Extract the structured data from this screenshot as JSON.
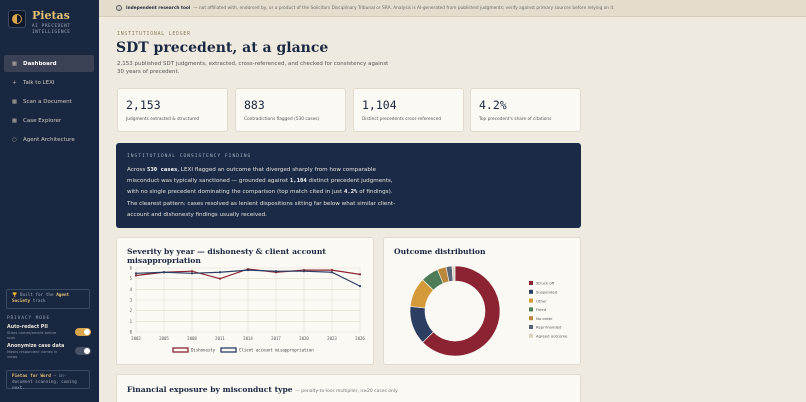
{
  "brand": {
    "name": "Pietas",
    "subtitle": "AI PRECEDENT INTELLIGENCE"
  },
  "nav": [
    {
      "label": "Dashboard",
      "icon": "grid-icon",
      "active": true
    },
    {
      "label": "Talk to LEXI",
      "icon": "plus-icon",
      "active": false
    },
    {
      "label": "Scan a Document",
      "icon": "grid-icon",
      "active": false
    },
    {
      "label": "Case Explorer",
      "icon": "grid-icon",
      "active": false
    },
    {
      "label": "Agent Architecture",
      "icon": "circle-icon",
      "active": false
    }
  ],
  "agent_box": {
    "prefix": "Built for the",
    "highlight": "Agent Society",
    "suffix": "track"
  },
  "privacy": {
    "title": "PRIVACY MODE",
    "auto_redact_label": "Auto-redact PII",
    "auto_redact_sub": "Strips names/emails before scan",
    "auto_redact_on": true,
    "anonymize_label": "Anonymize case data",
    "anonymize_sub": "Masks respondent names in views",
    "anonymize_on": false
  },
  "word_box": {
    "highlight": "Pietas for Word",
    "text": "— in-document scanning, coming next."
  },
  "banner": {
    "bold": "Independent research tool",
    "text": "— not affiliated with, endorsed by, or a product of the Solicitors Disciplinary Tribunal or SRA. Analysis is AI-generated from published judgments; verify against primary sources before relying on it."
  },
  "header": {
    "kicker": "INSTITUTIONAL LEDGER",
    "title": "SDT precedent, at a glance",
    "subtitle": "2,153 published SDT judgments, extracted, cross-referenced, and checked for consistency against 30 years of precedent."
  },
  "stats": [
    {
      "value": "2,153",
      "label": "Judgments extracted & structured"
    },
    {
      "value": "883",
      "label": "Contradictions flagged (530 cases)"
    },
    {
      "value": "1,104",
      "label": "Distinct precedents cross-referenced"
    },
    {
      "value": "4.2%",
      "label": "Top precedent's share of citations"
    }
  ],
  "finding": {
    "title": "INSTITUTIONAL CONSISTENCY FINDING",
    "t1": "Across ",
    "n1": "530 cases",
    "t2": ", LEXI flagged an outcome that diverged sharply from how comparable misconduct was typically sanctioned — grounded against ",
    "n2": "1,104",
    "t3": " distinct precedent judgments, with no single precedent dominating the comparison (top match cited in just ",
    "n3": "4.2%",
    "t4": " of findings). The clearest pattern: cases resolved as lenient dispositions sitting far below what similar client-account and dishonesty findings usually received."
  },
  "severity_card": {
    "title": "Severity by year — dishonesty & client account misappropriation"
  },
  "outcome_card": {
    "title": "Outcome distribution"
  },
  "exposure_card": {
    "title": "Financial exposure by misconduct type",
    "subtitle": "— penalty-to-loss multiplier, n≥20 cases only"
  },
  "chart_data": [
    {
      "type": "line",
      "title": "Severity by year — dishonesty & client account misappropriation",
      "x": [
        "2002",
        "2005",
        "2008",
        "2011",
        "2014",
        "2017",
        "2020",
        "2023",
        "2026"
      ],
      "ylim": [
        0,
        6
      ],
      "yticks": [
        0,
        1,
        2,
        3,
        4,
        5,
        6
      ],
      "series": [
        {
          "name": "Dishonesty",
          "color": "#8b2332",
          "values": [
            5.3,
            5.6,
            5.7,
            5.0,
            5.9,
            5.6,
            5.8,
            5.8,
            5.4
          ]
        },
        {
          "name": "Client account misappropriation",
          "color": "#2d3e63",
          "values": [
            5.5,
            5.6,
            5.5,
            5.6,
            5.8,
            5.7,
            5.7,
            5.6,
            4.3
          ]
        }
      ],
      "grid": true,
      "legend": "bottom"
    },
    {
      "type": "pie",
      "title": "Outcome distribution",
      "labels": [
        "Struck off",
        "Suspended",
        "Other",
        "Fined",
        "No order",
        "Reprimanded",
        "Agreed outcome"
      ],
      "colors": [
        "#8b2332",
        "#2d3e63",
        "#d49a3a",
        "#4e7c57",
        "#b8873a",
        "#5a6478",
        "#d9d3c2"
      ],
      "values": [
        59,
        13,
        10,
        6,
        3,
        2,
        1
      ],
      "legend": "right"
    }
  ]
}
